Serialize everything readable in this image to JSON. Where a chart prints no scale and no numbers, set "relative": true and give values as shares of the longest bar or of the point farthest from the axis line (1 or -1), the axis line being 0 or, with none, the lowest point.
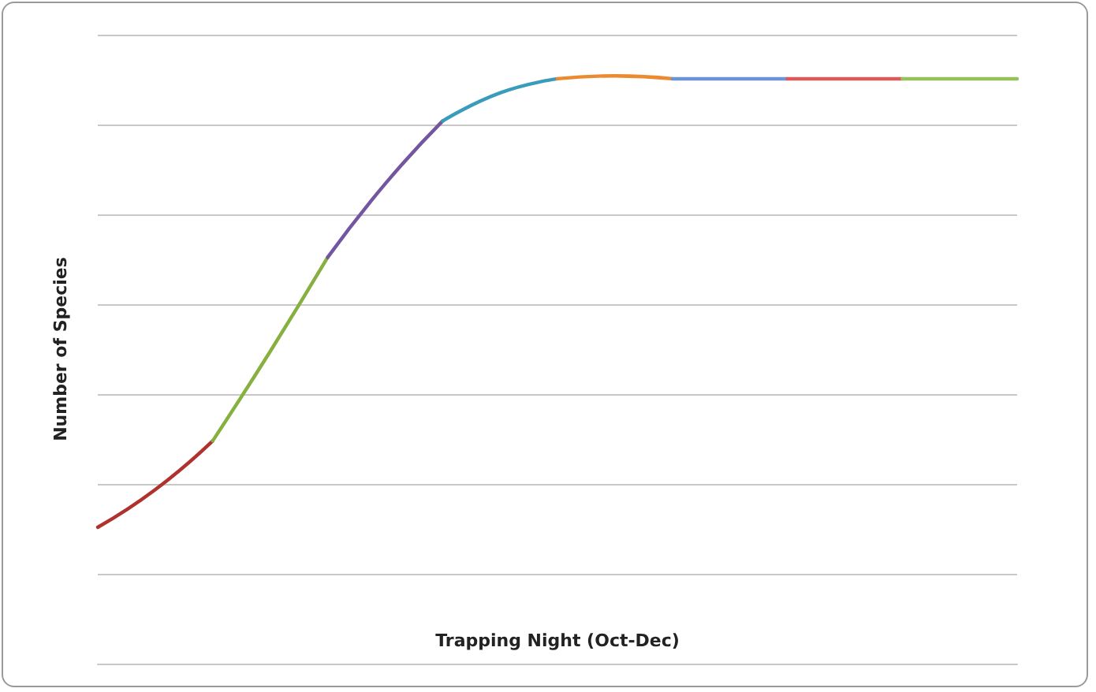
{
  "chart_data": {
    "type": "line",
    "relative": true,
    "xlabel": "Trapping Night (Oct-Dec)",
    "ylabel": "Number of Species",
    "grid": "y",
    "marker": "none",
    "line_style": "solid",
    "categories": [
      null,
      null,
      null,
      null,
      null,
      null,
      null,
      null,
      null,
      null,
      null,
      null,
      null,
      null,
      null,
      null,
      null
    ],
    "series": [
      {
        "color": "#b0322e",
        "values": [
          0.232,
          0.296,
          0.379,
          null,
          null,
          null,
          null,
          null,
          null,
          null,
          null,
          null,
          null,
          null,
          null,
          null,
          null
        ]
      },
      {
        "color": "#86b040",
        "values": [
          null,
          null,
          0.379,
          0.531,
          0.691,
          null,
          null,
          null,
          null,
          null,
          null,
          null,
          null,
          null,
          null,
          null,
          null
        ]
      },
      {
        "color": "#7456a0",
        "values": [
          null,
          null,
          null,
          null,
          0.691,
          0.816,
          0.923,
          null,
          null,
          null,
          null,
          null,
          null,
          null,
          null,
          null,
          null
        ]
      },
      {
        "color": "#3a9cbc",
        "values": [
          null,
          null,
          null,
          null,
          null,
          null,
          0.923,
          0.971,
          0.995,
          null,
          null,
          null,
          null,
          null,
          null,
          null,
          null
        ]
      },
      {
        "color": "#ec8a30",
        "values": [
          null,
          null,
          null,
          null,
          null,
          null,
          null,
          null,
          0.995,
          1.0,
          0.995,
          null,
          null,
          null,
          null,
          null,
          null
        ]
      },
      {
        "color": "#6a94d4",
        "values": [
          null,
          null,
          null,
          null,
          null,
          null,
          null,
          null,
          null,
          null,
          0.995,
          0.995,
          0.995,
          null,
          null,
          null,
          null
        ]
      },
      {
        "color": "#d85a5a",
        "values": [
          null,
          null,
          null,
          null,
          null,
          null,
          null,
          null,
          null,
          null,
          null,
          null,
          0.995,
          0.995,
          0.995,
          null,
          null
        ]
      },
      {
        "color": "#96c05a",
        "values": [
          null,
          null,
          null,
          null,
          null,
          null,
          null,
          null,
          null,
          null,
          null,
          null,
          null,
          null,
          0.995,
          0.995,
          0.995
        ]
      }
    ]
  }
}
